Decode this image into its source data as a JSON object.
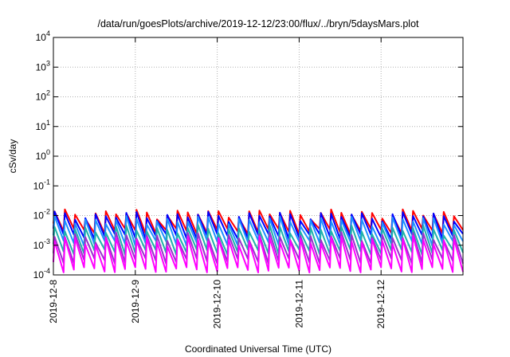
{
  "chart_data": {
    "type": "line",
    "title": "/data/run/goesPlots/archive/2019-12-12/23:00/flux/../bryn/5daysMars.plot",
    "xlabel": "Coordinated Universal Time (UTC)",
    "ylabel": "cSv/day",
    "yscale": "log",
    "ylim": [
      0.0001,
      10000
    ],
    "xlim": [
      "2019-12-08",
      "2019-12-13"
    ],
    "x_tick_labels": [
      "2019-12-8",
      "2019-12-9",
      "2019-12-10",
      "2019-12-11",
      "2019-12-12"
    ],
    "y_tick_labels": [
      {
        "base": "10",
        "exp": "-4",
        "value": 0.0001
      },
      {
        "base": "10",
        "exp": "-3",
        "value": 0.001
      },
      {
        "base": "10",
        "exp": "-2",
        "value": 0.01
      },
      {
        "base": "10",
        "exp": "-1",
        "value": 0.1
      },
      {
        "base": "10",
        "exp": "0",
        "value": 1
      },
      {
        "base": "10",
        "exp": "1",
        "value": 10
      },
      {
        "base": "10",
        "exp": "2",
        "value": 100
      },
      {
        "base": "10",
        "exp": "3",
        "value": 1000
      },
      {
        "base": "10",
        "exp": "4",
        "value": 10000
      }
    ],
    "grid": true,
    "sawtooth_period_days": 0.125,
    "series": [
      {
        "color": "#ff0000",
        "peak": 0.012,
        "trough": 0.003
      },
      {
        "color": "#0000ff",
        "peak": 0.01,
        "trough": 0.002
      },
      {
        "color": "#1e90ff",
        "peak": 0.007,
        "trough": 0.0012
      },
      {
        "color": "#20b2aa",
        "peak": 0.0035,
        "trough": 0.0006
      },
      {
        "color": "#9932cc",
        "peak": 0.002,
        "trough": 0.0003
      },
      {
        "color": "#ff00ff",
        "peak": 0.0015,
        "trough": 0.00015
      }
    ]
  }
}
